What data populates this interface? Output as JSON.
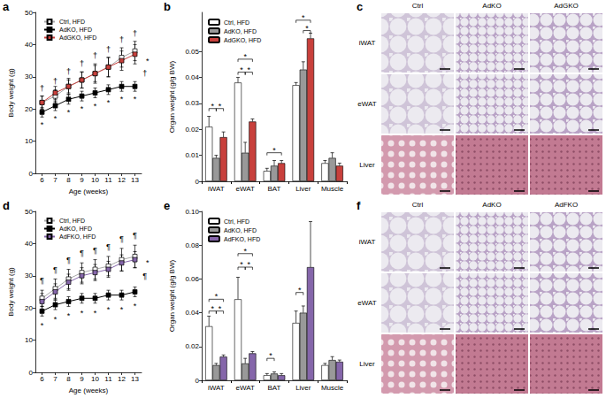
{
  "chart_data": [
    {
      "panel": "a",
      "type": "line",
      "x_label": "Age (weeks)",
      "y_label": "Body weight (g)",
      "x": [
        6,
        7,
        8,
        9,
        10,
        11,
        12,
        13
      ],
      "xlim": [
        5.5,
        13.5
      ],
      "xticks": [
        6,
        7,
        8,
        9,
        10,
        11,
        12,
        13
      ],
      "ylim": [
        0,
        50
      ],
      "yticks": [
        0,
        10,
        20,
        30,
        40,
        50
      ],
      "grid": false,
      "legend": "upper left",
      "series": [
        {
          "name": "Ctrl, HFD",
          "color": "#ffffff",
          "marker": "square",
          "values": [
            22,
            24,
            27,
            29,
            31,
            33,
            36,
            38
          ],
          "errors": [
            2,
            2,
            2.5,
            2.5,
            3,
            3,
            3,
            3
          ]
        },
        {
          "name": "AdKO, HFD",
          "color": "#000000",
          "marker": "square",
          "values": [
            19,
            21,
            23,
            24,
            25,
            26,
            27,
            27
          ],
          "errors": [
            1.5,
            1.5,
            1.5,
            1.5,
            1.5,
            1.5,
            1.5,
            1.5
          ]
        },
        {
          "name": "AdGKO, HFD",
          "color": "#c8403c",
          "marker": "square",
          "values": [
            22,
            25,
            27,
            29,
            31,
            33,
            35,
            37
          ],
          "errors": [
            2,
            2,
            2,
            2.5,
            2.5,
            3,
            3,
            3
          ]
        }
      ],
      "annotations": [
        {
          "text": "†",
          "x": [
            6,
            7,
            8,
            9,
            10,
            11,
            12,
            13
          ],
          "y": [
            26.5,
            28.5,
            31.5,
            34,
            36.5,
            38.5,
            41.5,
            43.5
          ]
        },
        {
          "text": "*",
          "x": [
            6,
            7,
            8,
            9,
            10,
            11,
            12,
            13
          ],
          "y": [
            15,
            17,
            19,
            20,
            21,
            22,
            23,
            23
          ]
        },
        {
          "text": "†",
          "x": [
            13.75
          ],
          "y": [
            31
          ]
        },
        {
          "text": "*",
          "x": [
            13.95
          ],
          "y": [
            35
          ]
        }
      ]
    },
    {
      "panel": "b",
      "type": "bar",
      "y_label": "Organ weight (g/g BW)",
      "categories": [
        "iWAT",
        "eWAT",
        "BAT",
        "Liver",
        "Muscle"
      ],
      "ylim": [
        0,
        0.065
      ],
      "yticks": [
        0,
        0.01,
        0.02,
        0.03,
        0.04,
        0.05
      ],
      "grid": false,
      "legend": "upper left",
      "series": [
        {
          "name": "Ctrl, HFD",
          "color": "#ffffff",
          "values": [
            0.021,
            0.038,
            0.004,
            0.037,
            0.007
          ],
          "errors": [
            0.004,
            0.002,
            0.001,
            0.001,
            0.001
          ]
        },
        {
          "name": "AdKO, HFD",
          "color": "#999999",
          "values": [
            0.009,
            0.011,
            0.006,
            0.043,
            0.009
          ],
          "errors": [
            0.001,
            0.004,
            0.002,
            0.003,
            0.002
          ]
        },
        {
          "name": "AdGKO, HFD",
          "color": "#c8403c",
          "values": [
            0.017,
            0.023,
            0.007,
            0.055,
            0.006
          ],
          "errors": [
            0.002,
            0.001,
            0.001,
            0.002,
            0.001
          ]
        }
      ],
      "significance": [
        {
          "category": "iWAT",
          "between": [
            "Ctrl, HFD",
            "AdKO, HFD"
          ],
          "y": 0.028,
          "label": "*"
        },
        {
          "category": "iWAT",
          "between": [
            "AdKO, HFD",
            "AdGKO, HFD"
          ],
          "y": 0.028,
          "label": "*"
        },
        {
          "category": "eWAT",
          "between": [
            "Ctrl, HFD",
            "AdKO, HFD"
          ],
          "y": 0.042,
          "label": "*"
        },
        {
          "category": "eWAT",
          "between": [
            "AdKO, HFD",
            "AdGKO, HFD"
          ],
          "y": 0.042,
          "label": "*"
        },
        {
          "category": "eWAT",
          "between": [
            "Ctrl, HFD",
            "AdGKO, HFD"
          ],
          "y": 0.047,
          "label": "*"
        },
        {
          "category": "BAT",
          "between": [
            "Ctrl, HFD",
            "AdGKO, HFD"
          ],
          "y": 0.011,
          "label": "*"
        },
        {
          "category": "Liver",
          "between": [
            "AdKO, HFD",
            "AdGKO, HFD"
          ],
          "y": 0.058,
          "label": "*"
        },
        {
          "category": "Liver",
          "between": [
            "Ctrl, HFD",
            "AdGKO, HFD"
          ],
          "y": 0.062,
          "label": "*"
        }
      ]
    },
    {
      "panel": "d",
      "type": "line",
      "x_label": "Age (weeks)",
      "y_label": "Body weight (g)",
      "x": [
        6,
        7,
        8,
        9,
        10,
        11,
        12,
        13
      ],
      "xlim": [
        5.5,
        13.5
      ],
      "xticks": [
        6,
        7,
        8,
        9,
        10,
        11,
        12,
        13
      ],
      "ylim": [
        0,
        50
      ],
      "yticks": [
        0,
        10,
        20,
        30,
        40,
        50
      ],
      "grid": false,
      "legend": "upper left",
      "series": [
        {
          "name": "Ctrl, HFD",
          "color": "#ffffff",
          "marker": "square",
          "values": [
            23,
            26,
            29,
            31,
            32,
            33,
            35,
            36
          ],
          "errors": [
            2.5,
            3,
            3,
            3,
            3,
            3,
            3.5,
            3.5
          ]
        },
        {
          "name": "AdKO, HFD",
          "color": "#000000",
          "marker": "square",
          "values": [
            19,
            21,
            22,
            23,
            23,
            24,
            24,
            25
          ],
          "errors": [
            1.5,
            1.5,
            1.5,
            1.5,
            1.5,
            1.5,
            1.5,
            1.5
          ]
        },
        {
          "name": "AdFKO, HFD",
          "color": "#8566aa",
          "marker": "square",
          "values": [
            22,
            25,
            28,
            30,
            31,
            32,
            34,
            35
          ],
          "errors": [
            2.5,
            2.5,
            2.5,
            2.5,
            2.5,
            2.5,
            2.5,
            2.5
          ]
        }
      ],
      "annotations": [
        {
          "text": "¶",
          "x": [
            6,
            7,
            8,
            9,
            10,
            11,
            12,
            13
          ],
          "y": [
            28.5,
            32,
            35,
            37,
            38,
            39,
            41.5,
            42.5
          ]
        },
        {
          "text": "*",
          "x": [
            6,
            7,
            8,
            9,
            10,
            11,
            12,
            13
          ],
          "y": [
            14.5,
            16.5,
            17.5,
            18.5,
            18.5,
            19.5,
            19.5,
            20.5
          ]
        },
        {
          "text": "¶",
          "x": [
            13.75
          ],
          "y": [
            30
          ]
        },
        {
          "text": "*",
          "x": [
            13.95
          ],
          "y": [
            34
          ]
        }
      ]
    },
    {
      "panel": "e",
      "type": "bar",
      "y_label": "Organ weight (g/g BW)",
      "categories": [
        "iWAT",
        "eWAT",
        "BAT",
        "Liver",
        "Muscle"
      ],
      "ylim": [
        0,
        0.1
      ],
      "yticks": [
        0,
        0.02,
        0.04,
        0.06,
        0.08,
        {
          "value": 0.1,
          "label": "0.10"
        }
      ],
      "grid": false,
      "legend": "upper left",
      "series": [
        {
          "name": "Ctrl, HFD",
          "color": "#ffffff",
          "values": [
            0.032,
            0.048,
            0.003,
            0.034,
            0.009
          ],
          "errors": [
            0.006,
            0.013,
            0.001,
            0.007,
            0.001
          ]
        },
        {
          "name": "AdKO, HFD",
          "color": "#999999",
          "values": [
            0.009,
            0.01,
            0.004,
            0.04,
            0.012
          ],
          "errors": [
            0.001,
            0.003,
            0.001,
            0.004,
            0.002
          ]
        },
        {
          "name": "AdFKO, HFD",
          "color": "#8566aa",
          "values": [
            0.014,
            0.016,
            0.003,
            0.067,
            0.011
          ],
          "errors": [
            0.001,
            0.001,
            0.001,
            0.027,
            0.001
          ]
        }
      ],
      "significance": [
        {
          "category": "iWAT",
          "between": [
            "Ctrl, HFD",
            "AdKO, HFD"
          ],
          "y": 0.041,
          "label": "*"
        },
        {
          "category": "iWAT",
          "between": [
            "AdKO, HFD",
            "AdFKO, HFD"
          ],
          "y": 0.041,
          "label": "*"
        },
        {
          "category": "iWAT",
          "between": [
            "Ctrl, HFD",
            "AdFKO, HFD"
          ],
          "y": 0.048,
          "label": "*"
        },
        {
          "category": "eWAT",
          "between": [
            "Ctrl, HFD",
            "AdKO, HFD"
          ],
          "y": 0.067,
          "label": "*"
        },
        {
          "category": "eWAT",
          "between": [
            "AdKO, HFD",
            "AdFKO, HFD"
          ],
          "y": 0.067,
          "label": "*"
        },
        {
          "category": "eWAT",
          "between": [
            "Ctrl, HFD",
            "AdFKO, HFD"
          ],
          "y": 0.075,
          "label": "*"
        },
        {
          "category": "BAT",
          "between": [
            "Ctrl, HFD",
            "AdKO, HFD"
          ],
          "y": 0.013,
          "label": "*"
        },
        {
          "category": "Liver",
          "between": [
            "Ctrl, HFD",
            "AdKO, HFD"
          ],
          "y": 0.052,
          "label": "*"
        }
      ]
    }
  ],
  "images": [
    {
      "panel": "c",
      "columns": [
        "Ctrl",
        "AdKO",
        "AdGKO"
      ],
      "rows": [
        "iWAT",
        "eWAT",
        "Liver"
      ]
    },
    {
      "panel": "f",
      "columns": [
        "Ctrl",
        "AdKO",
        "AdFKO"
      ],
      "rows": [
        "iWAT",
        "eWAT",
        "Liver"
      ]
    }
  ]
}
